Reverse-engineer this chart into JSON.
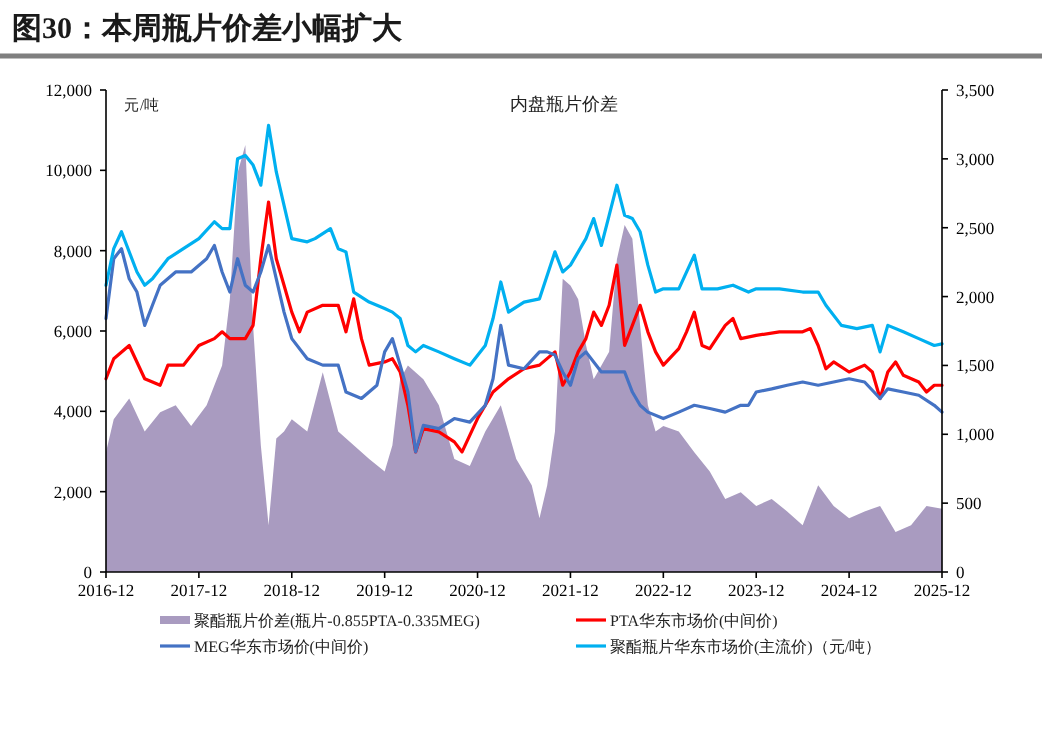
{
  "chart_data": {
    "type": "line",
    "title": "图30：本周瓶片价差小幅扩大",
    "annotations": [
      "元/吨",
      "内盘瓶片价差"
    ],
    "xlim": [
      "2016-12",
      "2025-12"
    ],
    "xticks": [
      "2016-12",
      "2017-12",
      "2018-12",
      "2019-12",
      "2020-12",
      "2021-12",
      "2022-12",
      "2023-12",
      "2024-12",
      "2025-12"
    ],
    "ylim": [
      0,
      12000
    ],
    "yticks": [
      0,
      {
        "value": 2000,
        "label": "2,000"
      },
      {
        "value": 4000,
        "label": "4,000"
      },
      {
        "value": 6000,
        "label": "6,000"
      },
      {
        "value": 8000,
        "label": "8,000"
      },
      {
        "value": 10000,
        "label": "10,000"
      },
      {
        "value": 12000,
        "label": "12,000"
      }
    ],
    "y2lim": [
      0,
      3500
    ],
    "y2ticks": [
      0,
      500,
      {
        "value": 1000,
        "label": "1,000"
      },
      {
        "value": 1500,
        "label": "1,500"
      },
      {
        "value": 2000,
        "label": "2,000"
      },
      {
        "value": 2500,
        "label": "2,500"
      },
      {
        "value": 3000,
        "label": "3,000"
      },
      {
        "value": 3500,
        "label": "3,500"
      }
    ],
    "legend": "bottom",
    "series": [
      {
        "name": "聚酯瓶片价差(瓶片-0.855PTA-0.335MEG)",
        "type": "area",
        "axis": "y2",
        "color": "#a99bc0",
        "x": [
          "2016-12",
          "2017-01",
          "2017-03",
          "2017-05",
          "2017-07",
          "2017-09",
          "2017-11",
          "2018-01",
          "2018-03",
          "2018-04",
          "2018-05",
          "2018-06",
          "2018-07",
          "2018-08",
          "2018-09",
          "2018-10",
          "2018-11",
          "2018-12",
          "2019-02",
          "2019-04",
          "2019-06",
          "2019-08",
          "2019-10",
          "2019-12",
          "2020-01",
          "2020-02",
          "2020-03",
          "2020-05",
          "2020-07",
          "2020-09",
          "2020-11",
          "2021-01",
          "2021-03",
          "2021-05",
          "2021-07",
          "2021-08",
          "2021-09",
          "2021-10",
          "2021-11",
          "2021-12",
          "2022-01",
          "2022-02",
          "2022-03",
          "2022-04",
          "2022-05",
          "2022-06",
          "2022-07",
          "2022-08",
          "2022-09",
          "2022-10",
          "2022-11",
          "2022-12",
          "2023-02",
          "2023-04",
          "2023-06",
          "2023-08",
          "2023-10",
          "2023-12",
          "2024-02",
          "2024-04",
          "2024-06",
          "2024-08",
          "2024-10",
          "2024-12",
          "2025-02",
          "2025-04",
          "2025-06",
          "2025-08",
          "2025-10",
          "2025-12"
        ],
        "values": [
          870,
          1110,
          1260,
          1020,
          1160,
          1210,
          1060,
          1210,
          1500,
          1980,
          2900,
          3100,
          1790,
          920,
          340,
          970,
          1020,
          1110,
          1020,
          1450,
          1020,
          920,
          820,
          730,
          920,
          1400,
          1500,
          1400,
          1210,
          820,
          770,
          1020,
          1210,
          820,
          630,
          390,
          630,
          1020,
          2130,
          2080,
          1980,
          1650,
          1400,
          1500,
          1600,
          2270,
          2520,
          2420,
          1790,
          1210,
          1020,
          1060,
          1020,
          870,
          730,
          530,
          580,
          480,
          530,
          440,
          340,
          630,
          480,
          390,
          440,
          480,
          290,
          340,
          480,
          460
        ]
      },
      {
        "name": "PTA华东市场价(中间价)",
        "color": "#ff0000",
        "x": [
          "2016-12",
          "2017-01",
          "2017-03",
          "2017-05",
          "2017-07",
          "2017-08",
          "2017-10",
          "2017-12",
          "2018-02",
          "2018-03",
          "2018-04",
          "2018-06",
          "2018-07",
          "2018-08",
          "2018-09",
          "2018-10",
          "2018-11",
          "2018-12",
          "2019-01",
          "2019-02",
          "2019-04",
          "2019-06",
          "2019-07",
          "2019-08",
          "2019-09",
          "2019-10",
          "2019-12",
          "2020-01",
          "2020-02",
          "2020-03",
          "2020-04",
          "2020-05",
          "2020-07",
          "2020-09",
          "2020-10",
          "2020-12",
          "2021-02",
          "2021-04",
          "2021-06",
          "2021-08",
          "2021-10",
          "2021-11",
          "2021-12",
          "2022-01",
          "2022-02",
          "2022-03",
          "2022-04",
          "2022-05",
          "2022-06",
          "2022-07",
          "2022-08",
          "2022-09",
          "2022-10",
          "2022-11",
          "2022-12",
          "2023-02",
          "2023-03",
          "2023-04",
          "2023-05",
          "2023-06",
          "2023-08",
          "2023-09",
          "2023-10",
          "2023-12",
          "2024-03",
          "2024-06",
          "2024-07",
          "2024-08",
          "2024-09",
          "2024-10",
          "2024-12",
          "2025-02",
          "2025-03",
          "2025-04",
          "2025-05",
          "2025-06",
          "2025-07",
          "2025-09",
          "2025-10",
          "2025-11",
          "2025-12"
        ],
        "values": [
          4810,
          5310,
          5640,
          4810,
          4650,
          5150,
          5150,
          5640,
          5810,
          5980,
          5810,
          5810,
          6140,
          7800,
          9210,
          7800,
          7140,
          6470,
          5980,
          6470,
          6640,
          6640,
          5980,
          6800,
          5810,
          5150,
          5230,
          5310,
          4980,
          4150,
          2990,
          3570,
          3490,
          3240,
          2990,
          3820,
          4480,
          4810,
          5060,
          5150,
          5480,
          4650,
          4980,
          5480,
          5810,
          6470,
          6140,
          6640,
          7640,
          5640,
          6140,
          6640,
          5980,
          5480,
          5150,
          5560,
          5980,
          6470,
          5640,
          5560,
          6140,
          6310,
          5810,
          5890,
          5980,
          5980,
          6060,
          5640,
          5060,
          5230,
          4980,
          5150,
          4980,
          4320,
          4980,
          5230,
          4900,
          4730,
          4480,
          4650,
          4650
        ]
      },
      {
        "name": "MEG华东市场价(中间价)",
        "color": "#4472c4",
        "x": [
          "2016-12",
          "2017-01",
          "2017-02",
          "2017-03",
          "2017-04",
          "2017-05",
          "2017-06",
          "2017-07",
          "2017-09",
          "2017-11",
          "2018-01",
          "2018-02",
          "2018-03",
          "2018-04",
          "2018-05",
          "2018-06",
          "2018-07",
          "2018-08",
          "2018-09",
          "2018-10",
          "2018-11",
          "2018-12",
          "2019-02",
          "2019-04",
          "2019-06",
          "2019-07",
          "2019-09",
          "2019-11",
          "2019-12",
          "2020-01",
          "2020-02",
          "2020-03",
          "2020-04",
          "2020-05",
          "2020-07",
          "2020-09",
          "2020-11",
          "2021-01",
          "2021-02",
          "2021-03",
          "2021-04",
          "2021-06",
          "2021-08",
          "2021-09",
          "2021-10",
          "2021-11",
          "2021-12",
          "2022-01",
          "2022-02",
          "2022-04",
          "2022-06",
          "2022-07",
          "2022-08",
          "2022-09",
          "2022-10",
          "2022-12",
          "2023-02",
          "2023-04",
          "2023-06",
          "2023-08",
          "2023-10",
          "2023-11",
          "2023-12",
          "2024-02",
          "2024-04",
          "2024-06",
          "2024-08",
          "2024-10",
          "2024-12",
          "2025-02",
          "2025-04",
          "2025-05",
          "2025-07",
          "2025-09",
          "2025-11",
          "2025-12"
        ],
        "values": [
          6310,
          7800,
          8050,
          7300,
          6970,
          6140,
          6640,
          7140,
          7470,
          7470,
          7800,
          8130,
          7470,
          6970,
          7800,
          7140,
          6970,
          7470,
          8130,
          7300,
          6470,
          5810,
          5310,
          5150,
          5150,
          4480,
          4320,
          4650,
          5480,
          5810,
          5150,
          4480,
          2990,
          3650,
          3570,
          3820,
          3730,
          4150,
          4810,
          6140,
          5150,
          5060,
          5480,
          5480,
          5400,
          4980,
          4650,
          5310,
          5480,
          4980,
          4980,
          4980,
          4480,
          4150,
          3980,
          3820,
          3980,
          4150,
          4070,
          3980,
          4150,
          4150,
          4480,
          4560,
          4650,
          4730,
          4650,
          4730,
          4810,
          4730,
          4320,
          4560,
          4480,
          4400,
          4150,
          3980
        ]
      },
      {
        "name": "聚酯瓶片华东市场价(主流价)（元/吨）",
        "color": "#00b0f0",
        "x": [
          "2016-12",
          "2017-01",
          "2017-02",
          "2017-04",
          "2017-05",
          "2017-06",
          "2017-08",
          "2017-10",
          "2017-12",
          "2018-02",
          "2018-03",
          "2018-04",
          "2018-05",
          "2018-06",
          "2018-07",
          "2018-08",
          "2018-09",
          "2018-10",
          "2018-11",
          "2018-12",
          "2019-02",
          "2019-03",
          "2019-05",
          "2019-06",
          "2019-07",
          "2019-08",
          "2019-10",
          "2019-12",
          "2020-01",
          "2020-02",
          "2020-03",
          "2020-04",
          "2020-05",
          "2020-07",
          "2020-09",
          "2020-11",
          "2021-01",
          "2021-02",
          "2021-03",
          "2021-04",
          "2021-06",
          "2021-08",
          "2021-10",
          "2021-11",
          "2021-12",
          "2022-02",
          "2022-03",
          "2022-04",
          "2022-05",
          "2022-06",
          "2022-07",
          "2022-08",
          "2022-09",
          "2022-10",
          "2022-11",
          "2022-12",
          "2023-02",
          "2023-04",
          "2023-05",
          "2023-07",
          "2023-09",
          "2023-11",
          "2023-12",
          "2024-03",
          "2024-06",
          "2024-08",
          "2024-09",
          "2024-11",
          "2025-01",
          "2025-03",
          "2025-04",
          "2025-05",
          "2025-07",
          "2025-09",
          "2025-11",
          "2025-12"
        ],
        "values": [
          7140,
          8050,
          8470,
          7470,
          7140,
          7300,
          7800,
          8050,
          8300,
          8720,
          8550,
          8550,
          10290,
          10370,
          10130,
          9630,
          11120,
          9960,
          9130,
          8300,
          8220,
          8300,
          8550,
          8050,
          7970,
          6970,
          6720,
          6560,
          6470,
          6310,
          5640,
          5480,
          5640,
          5480,
          5310,
          5150,
          5640,
          6310,
          7220,
          6470,
          6720,
          6800,
          7970,
          7470,
          7640,
          8300,
          8800,
          8130,
          8880,
          9630,
          8880,
          8800,
          8470,
          7640,
          6970,
          7050,
          7050,
          7890,
          7050,
          7050,
          7140,
          6970,
          7050,
          7050,
          6970,
          6970,
          6640,
          6140,
          6060,
          6140,
          5480,
          6140,
          5980,
          5810,
          5640,
          5680
        ]
      }
    ]
  }
}
